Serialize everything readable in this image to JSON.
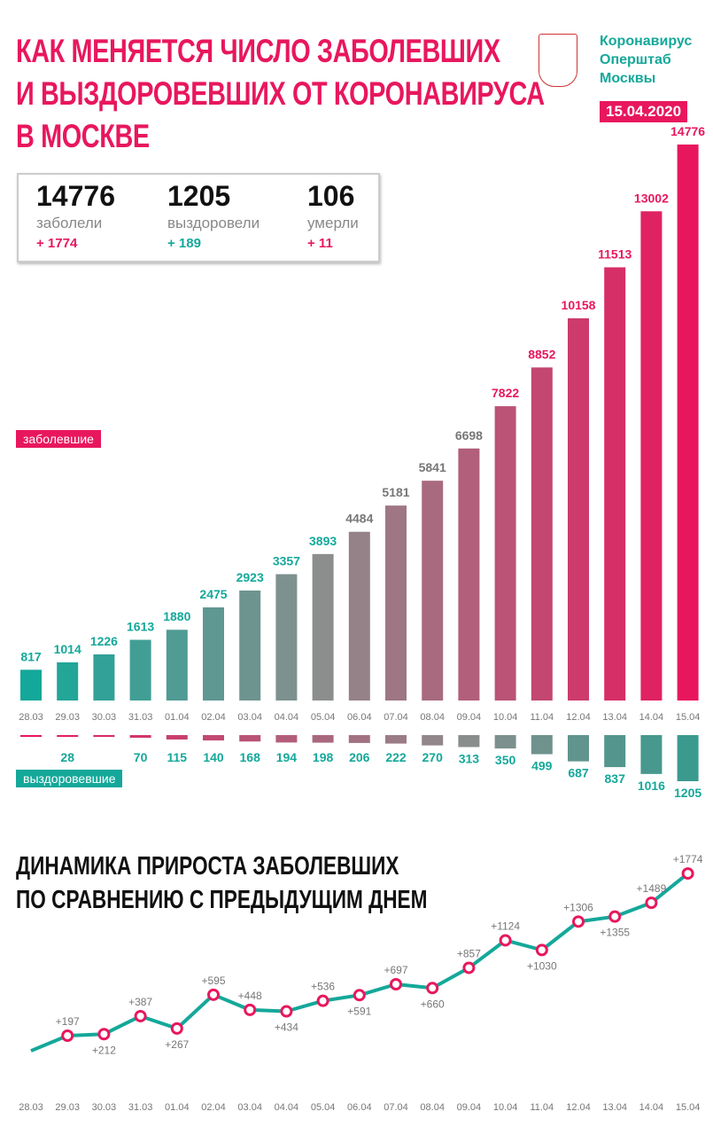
{
  "title_lines": [
    "КАК МЕНЯЕТСЯ ЧИСЛО ЗАБОЛЕВШИХ",
    "И ВЫЗДОРОВЕВШИХ ОТ КОРОНАВИРУСА",
    "В МОСКВЕ"
  ],
  "brand_lines": [
    "Коронавирус",
    "Оперштаб",
    "Москвы"
  ],
  "date": "15.04.2020",
  "stats": [
    {
      "value": "14776",
      "label": "заболели",
      "delta": "+ 1774",
      "color": "#e8175d"
    },
    {
      "value": "1205",
      "label": "выздоровели",
      "delta": "+ 189",
      "color": "#14a89a"
    },
    {
      "value": "106",
      "label": "умерли",
      "delta": "+ 11",
      "color": "#e8175d"
    }
  ],
  "colors": {
    "pink": "#e8175d",
    "teal": "#14a89a",
    "grey": "#8a8a8a"
  },
  "chart_data": [
    {
      "type": "bar",
      "title": "",
      "legend": [
        "заболевшие",
        "выздоровевшие"
      ],
      "categories": [
        "28.03",
        "29.03",
        "30.03",
        "31.03",
        "01.04",
        "02.04",
        "03.04",
        "04.04",
        "05.04",
        "06.04",
        "07.04",
        "08.04",
        "09.04",
        "10.04",
        "11.04",
        "12.04",
        "13.04",
        "14.04",
        "15.04"
      ],
      "series": [
        {
          "name": "заболевшие",
          "values": [
            817,
            1014,
            1226,
            1613,
            1880,
            2475,
            2923,
            3357,
            3893,
            4484,
            5181,
            5841,
            6698,
            7822,
            8852,
            10158,
            11513,
            13002,
            14776
          ]
        },
        {
          "name": "выздоровевшие",
          "values": [
            20,
            28,
            25,
            70,
            115,
            140,
            168,
            194,
            198,
            206,
            222,
            270,
            313,
            350,
            499,
            687,
            837,
            1016,
            1205
          ],
          "labels": [
            "",
            "28",
            "",
            "70",
            "115",
            "140",
            "168",
            "194",
            "198",
            "206",
            "222",
            "270",
            "313",
            "350",
            "499",
            "687",
            "837",
            "1016",
            "1205"
          ]
        }
      ]
    },
    {
      "type": "line",
      "title": "ДИНАМИКА ПРИРОСТА ЗАБОЛЕВШИХ ПО СРАВНЕНИЮ С ПРЕДЫДУЩИМ ДНЕМ",
      "title_lines": [
        "ДИНАМИКА ПРИРОСТА ЗАБОЛЕВШИХ",
        "ПО СРАВНЕНИЮ С ПРЕДЫДУЩИМ ДНЕМ"
      ],
      "categories": [
        "28.03",
        "29.03",
        "30.03",
        "31.03",
        "01.04",
        "02.04",
        "03.04",
        "04.04",
        "05.04",
        "06.04",
        "07.04",
        "08.04",
        "09.04",
        "10.04",
        "11.04",
        "12.04",
        "13.04",
        "14.04",
        "15.04"
      ],
      "values": [
        50,
        197,
        212,
        387,
        267,
        595,
        448,
        434,
        536,
        591,
        697,
        660,
        857,
        1124,
        1030,
        1306,
        1355,
        1489,
        1774
      ],
      "labels": [
        "",
        "+197",
        "+212",
        "+387",
        "+267",
        "+595",
        "+448",
        "+434",
        "+536",
        "+591",
        "+697",
        "+660",
        "+857",
        "+1124",
        "+1030",
        "+1306",
        "+1355",
        "+1489",
        "+1774"
      ],
      "label_pos": [
        "",
        "above",
        "below",
        "above",
        "below",
        "above",
        "above",
        "below",
        "above",
        "below",
        "above",
        "below",
        "above",
        "above",
        "below",
        "above",
        "below",
        "above",
        "above"
      ]
    }
  ]
}
